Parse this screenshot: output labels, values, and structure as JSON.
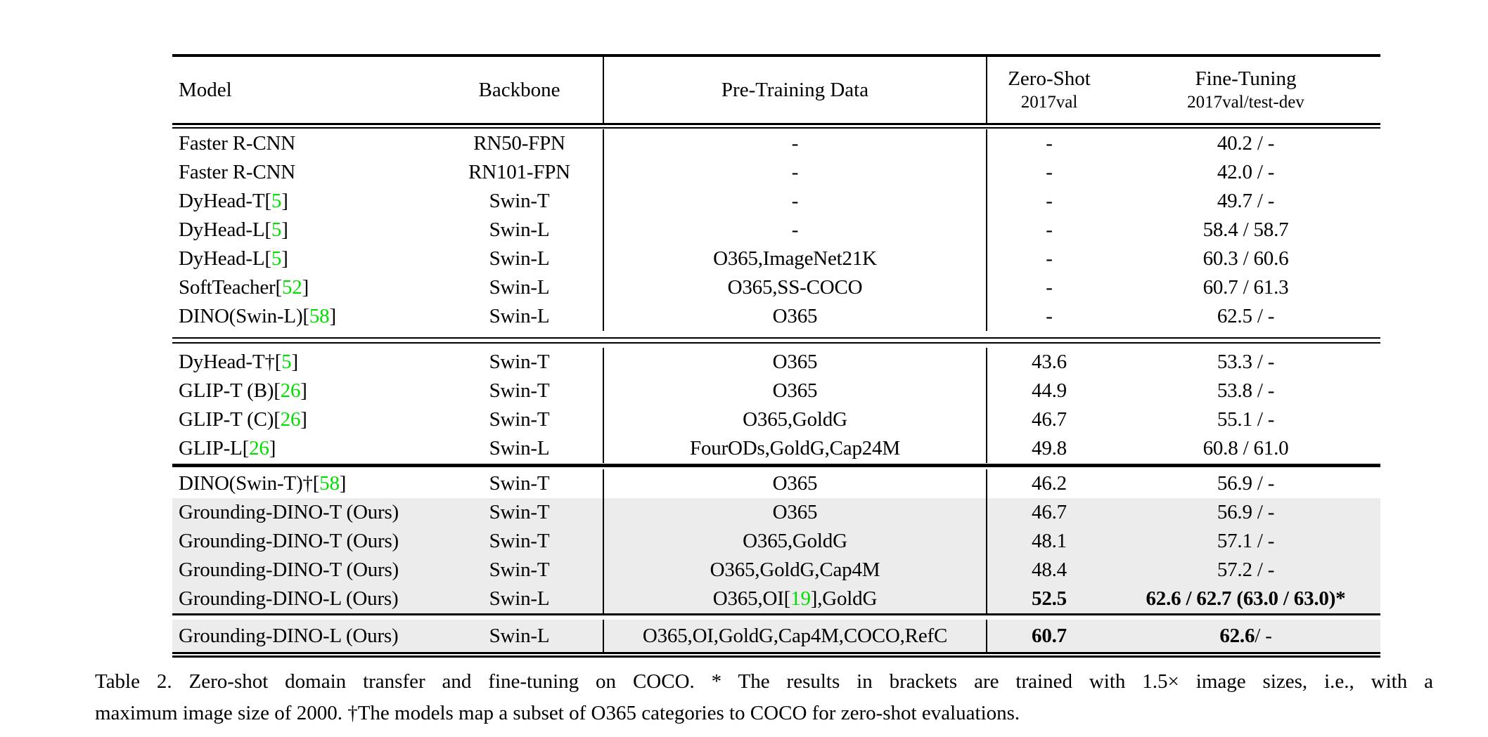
{
  "colors": {
    "citation_green": "#00DE00",
    "row_highlight": "#ECECEC",
    "rule_black": "#000000"
  },
  "table": {
    "header": {
      "model": "Model",
      "backbone": "Backbone",
      "pretraining": "Pre-Training Data",
      "zeroshot_title": "Zero-Shot",
      "zeroshot_sub": "2017val",
      "finetuning_title": "Fine-Tuning",
      "finetuning_sub": "2017val/test-dev"
    },
    "blocks": [
      [
        {
          "model": "Faster R-CNN",
          "model_cite": null,
          "backbone": "RN50-FPN",
          "pretrain_pre": "-",
          "pretrain_cite": null,
          "pretrain_post": "",
          "zeroshot": "-",
          "zeroshot_bold": false,
          "finetune_bold": "",
          "finetune": "40.2 / -",
          "highlight": false
        },
        {
          "model": "Faster R-CNN",
          "model_cite": null,
          "backbone": "RN101-FPN",
          "pretrain_pre": "-",
          "pretrain_cite": null,
          "pretrain_post": "",
          "zeroshot": "-",
          "zeroshot_bold": false,
          "finetune_bold": "",
          "finetune": "42.0 / -",
          "highlight": false
        },
        {
          "model": "DyHead-T",
          "model_cite": "5",
          "backbone": "Swin-T",
          "pretrain_pre": "-",
          "pretrain_cite": null,
          "pretrain_post": "",
          "zeroshot": "-",
          "zeroshot_bold": false,
          "finetune_bold": "",
          "finetune": "49.7 / -",
          "highlight": false
        },
        {
          "model": "DyHead-L",
          "model_cite": "5",
          "backbone": "Swin-L",
          "pretrain_pre": "-",
          "pretrain_cite": null,
          "pretrain_post": "",
          "zeroshot": "-",
          "zeroshot_bold": false,
          "finetune_bold": "",
          "finetune": "58.4 / 58.7",
          "highlight": false
        },
        {
          "model": "DyHead-L",
          "model_cite": "5",
          "backbone": "Swin-L",
          "pretrain_pre": "O365,ImageNet21K",
          "pretrain_cite": null,
          "pretrain_post": "",
          "zeroshot": "-",
          "zeroshot_bold": false,
          "finetune_bold": "",
          "finetune": "60.3 / 60.6",
          "highlight": false
        },
        {
          "model": "SoftTeacher",
          "model_cite": "52",
          "backbone": "Swin-L",
          "pretrain_pre": "O365,SS-COCO",
          "pretrain_cite": null,
          "pretrain_post": "",
          "zeroshot": "-",
          "zeroshot_bold": false,
          "finetune_bold": "",
          "finetune": "60.7 / 61.3",
          "highlight": false
        },
        {
          "model": "DINO(Swin-L)",
          "model_cite": "58",
          "backbone": "Swin-L",
          "pretrain_pre": "O365",
          "pretrain_cite": null,
          "pretrain_post": "",
          "zeroshot": "-",
          "zeroshot_bold": false,
          "finetune_bold": "",
          "finetune": "62.5 / -",
          "highlight": false
        }
      ],
      [
        {
          "model": "DyHead-T†",
          "model_cite": "5",
          "backbone": "Swin-T",
          "pretrain_pre": "O365",
          "pretrain_cite": null,
          "pretrain_post": "",
          "zeroshot": "43.6",
          "zeroshot_bold": false,
          "finetune_bold": "",
          "finetune": "53.3 / -",
          "highlight": false
        },
        {
          "model": "GLIP-T (B)",
          "model_cite": "26",
          "backbone": "Swin-T",
          "pretrain_pre": "O365",
          "pretrain_cite": null,
          "pretrain_post": "",
          "zeroshot": "44.9",
          "zeroshot_bold": false,
          "finetune_bold": "",
          "finetune": "53.8 / -",
          "highlight": false
        },
        {
          "model": "GLIP-T (C)",
          "model_cite": "26",
          "backbone": "Swin-T",
          "pretrain_pre": "O365,GoldG",
          "pretrain_cite": null,
          "pretrain_post": "",
          "zeroshot": "46.7",
          "zeroshot_bold": false,
          "finetune_bold": "",
          "finetune": "55.1 / -",
          "highlight": false
        },
        {
          "model": "GLIP-L",
          "model_cite": "26",
          "backbone": "Swin-L",
          "pretrain_pre": "FourODs,GoldG,Cap24M",
          "pretrain_cite": null,
          "pretrain_post": "",
          "zeroshot": "49.8",
          "zeroshot_bold": false,
          "finetune_bold": "",
          "finetune": "60.8 / 61.0",
          "highlight": false
        }
      ],
      [
        {
          "model": "DINO(Swin-T)†",
          "model_cite": "58",
          "backbone": "Swin-T",
          "pretrain_pre": "O365",
          "pretrain_cite": null,
          "pretrain_post": "",
          "zeroshot": "46.2",
          "zeroshot_bold": false,
          "finetune_bold": "",
          "finetune": "56.9 / -",
          "highlight": false
        },
        {
          "model": "Grounding-DINO-T (Ours)",
          "model_cite": null,
          "backbone": "Swin-T",
          "pretrain_pre": "O365",
          "pretrain_cite": null,
          "pretrain_post": "",
          "zeroshot": "46.7",
          "zeroshot_bold": false,
          "finetune_bold": "",
          "finetune": "56.9 / -",
          "highlight": true
        },
        {
          "model": "Grounding-DINO-T (Ours)",
          "model_cite": null,
          "backbone": "Swin-T",
          "pretrain_pre": "O365,GoldG",
          "pretrain_cite": null,
          "pretrain_post": "",
          "zeroshot": "48.1",
          "zeroshot_bold": false,
          "finetune_bold": "",
          "finetune": "57.1 / -",
          "highlight": true
        },
        {
          "model": "Grounding-DINO-T (Ours)",
          "model_cite": null,
          "backbone": "Swin-T",
          "pretrain_pre": "O365,GoldG,Cap4M",
          "pretrain_cite": null,
          "pretrain_post": "",
          "zeroshot": "48.4",
          "zeroshot_bold": false,
          "finetune_bold": "",
          "finetune": "57.2 / -",
          "highlight": true
        },
        {
          "model": "Grounding-DINO-L (Ours)",
          "model_cite": null,
          "backbone": "Swin-L",
          "pretrain_pre": "O365,OI ",
          "pretrain_cite": "19",
          "pretrain_post": ",GoldG",
          "zeroshot": "52.5",
          "zeroshot_bold": true,
          "finetune_bold": "62.6 / 62.7 (63.0 / 63.0)*",
          "finetune": "",
          "highlight": true
        }
      ],
      [
        {
          "model": "Grounding-DINO-L (Ours)",
          "model_cite": null,
          "backbone": "Swin-L",
          "pretrain_pre": "O365,OI,GoldG,Cap4M,COCO,RefC",
          "pretrain_cite": null,
          "pretrain_post": "",
          "zeroshot": "60.7",
          "zeroshot_bold": true,
          "finetune_bold": "62.6",
          "finetune": " / -",
          "highlight": true
        }
      ]
    ]
  },
  "caption": {
    "line1": "Table 2.  Zero-shot domain transfer and fine-tuning on COCO. * The results in brackets are trained with 1.5× image sizes, i.e., with a",
    "line2": "maximum image size of 2000. †The models map a subset of O365 categories to COCO for zero-shot evaluations."
  }
}
